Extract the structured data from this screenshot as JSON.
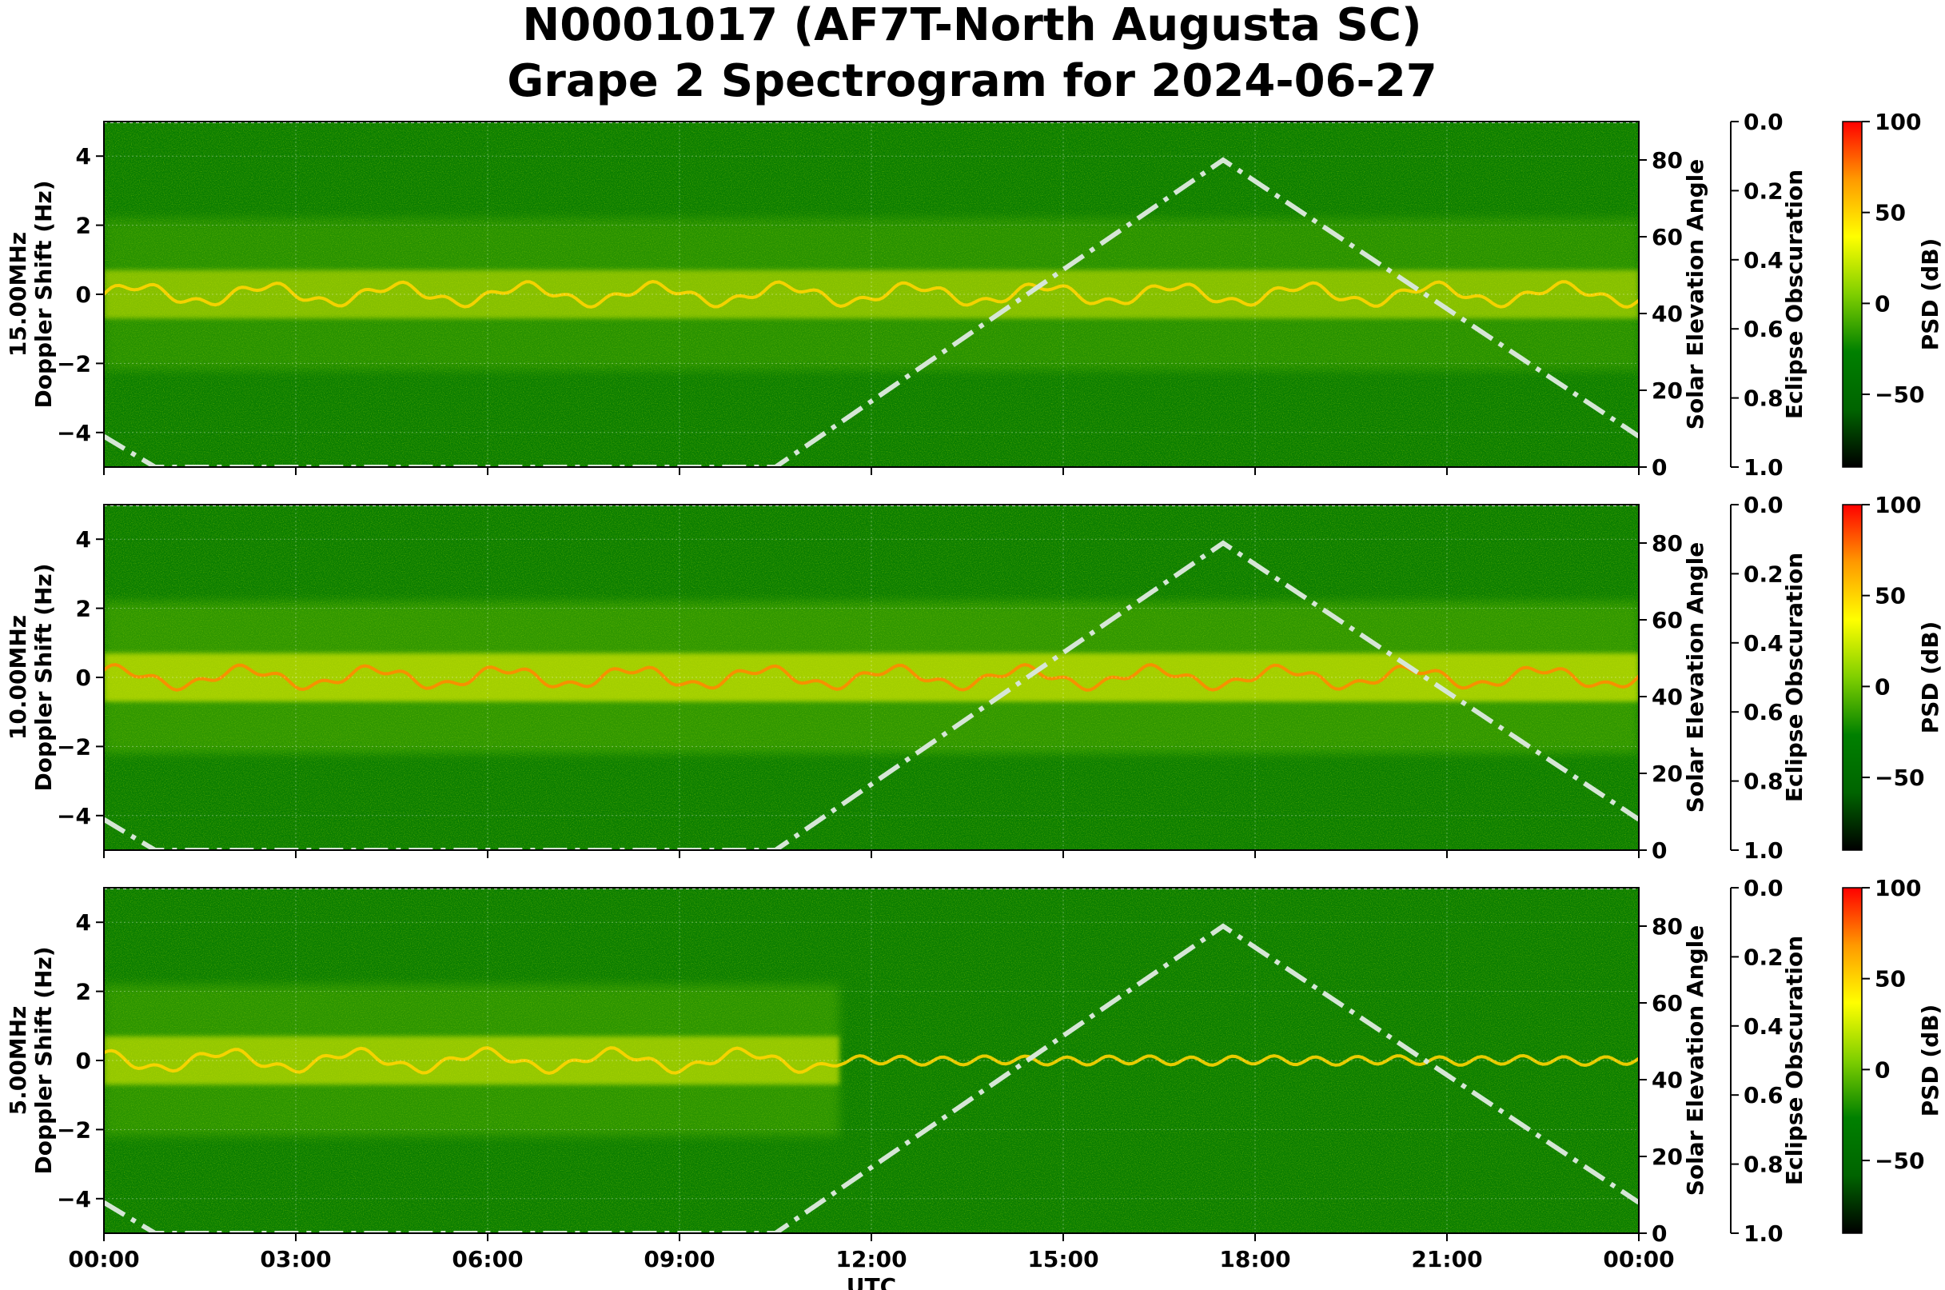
{
  "title": {
    "line1": "N0001017 (AF7T-North Augusta SC)",
    "line2": "Grape 2 Spectrogram for 2024-06-27"
  },
  "colors": {
    "spectrum_base": "#0a7d00",
    "colorbar_stops": [
      "#000000",
      "#006400",
      "#008000",
      "#7fcf00",
      "#ffff00",
      "#ff9900",
      "#ff0000"
    ],
    "solar_curve": "#d6e6d6"
  },
  "chart_data": [
    {
      "type": "heatmap",
      "ylabel": "15.00MHz\nDoppler Shift (Hz)",
      "ylim": [
        -5,
        5
      ],
      "y_ticks": [
        "4",
        "2",
        "0",
        "−2",
        "−4"
      ],
      "xlim": [
        "00:00",
        "24:00"
      ],
      "secondary_axis": {
        "label": "Solar Elevation Angle",
        "ylim": [
          0,
          90
        ],
        "ticks": [
          "80",
          "60",
          "40",
          "20",
          "0"
        ]
      },
      "eclipse_axis": {
        "label": "Eclipse Obscuration",
        "ylim": [
          1.0,
          0.0
        ],
        "ticks": [
          "0.0",
          "0.2",
          "0.4",
          "0.6",
          "0.8",
          "1.0"
        ]
      },
      "colorbar": {
        "label": "PSD (dB)",
        "range": [
          -90,
          100
        ],
        "ticks": [
          "100",
          "50",
          "0",
          "−50"
        ]
      },
      "solar_elevation": {
        "x_hours": [
          0,
          0.8,
          10.5,
          17.5,
          24
        ],
        "y_deg": [
          8,
          0,
          0,
          80,
          8
        ]
      },
      "signal_strength": 0.7,
      "grid": true
    },
    {
      "type": "heatmap",
      "ylabel": "10.00MHz\nDoppler Shift (Hz)",
      "ylim": [
        -5,
        5
      ],
      "y_ticks": [
        "4",
        "2",
        "0",
        "−2",
        "−4"
      ],
      "xlim": [
        "00:00",
        "24:00"
      ],
      "secondary_axis": {
        "label": "Solar Elevation Angle",
        "ylim": [
          0,
          90
        ],
        "ticks": [
          "80",
          "60",
          "40",
          "20",
          "0"
        ]
      },
      "eclipse_axis": {
        "label": "Eclipse Obscuration",
        "ylim": [
          1.0,
          0.0
        ],
        "ticks": [
          "0.0",
          "0.2",
          "0.4",
          "0.6",
          "0.8",
          "1.0"
        ]
      },
      "colorbar": {
        "label": "PSD (dB)",
        "range": [
          -90,
          100
        ],
        "ticks": [
          "100",
          "50",
          "0",
          "−50"
        ]
      },
      "solar_elevation": {
        "x_hours": [
          0,
          0.8,
          10.5,
          17.5,
          24
        ],
        "y_deg": [
          8,
          0,
          0,
          80,
          8
        ]
      },
      "signal_strength": 0.9,
      "grid": true
    },
    {
      "type": "heatmap",
      "ylabel": "5.00MHz\nDoppler Shift (Hz)",
      "xlabel": "UTC",
      "ylim": [
        -5,
        5
      ],
      "y_ticks": [
        "4",
        "2",
        "0",
        "−2",
        "−4"
      ],
      "xlim": [
        "00:00",
        "24:00"
      ],
      "x_ticks": [
        "00:00",
        "03:00",
        "06:00",
        "09:00",
        "12:00",
        "15:00",
        "18:00",
        "21:00",
        "00:00"
      ],
      "secondary_axis": {
        "label": "Solar Elevation Angle",
        "ylim": [
          0,
          90
        ],
        "ticks": [
          "80",
          "60",
          "40",
          "20",
          "0"
        ]
      },
      "eclipse_axis": {
        "label": "Eclipse Obscuration",
        "ylim": [
          1.0,
          0.0
        ],
        "ticks": [
          "0.0",
          "0.2",
          "0.4",
          "0.6",
          "0.8",
          "1.0"
        ]
      },
      "colorbar": {
        "label": "PSD (dB)",
        "range": [
          -90,
          100
        ],
        "ticks": [
          "100",
          "50",
          "0",
          "−50"
        ]
      },
      "solar_elevation": {
        "x_hours": [
          0,
          0.8,
          10.5,
          17.5,
          24
        ],
        "y_deg": [
          8,
          0,
          0,
          80,
          8
        ]
      },
      "signal_strength": 0.8,
      "grid": true
    }
  ]
}
